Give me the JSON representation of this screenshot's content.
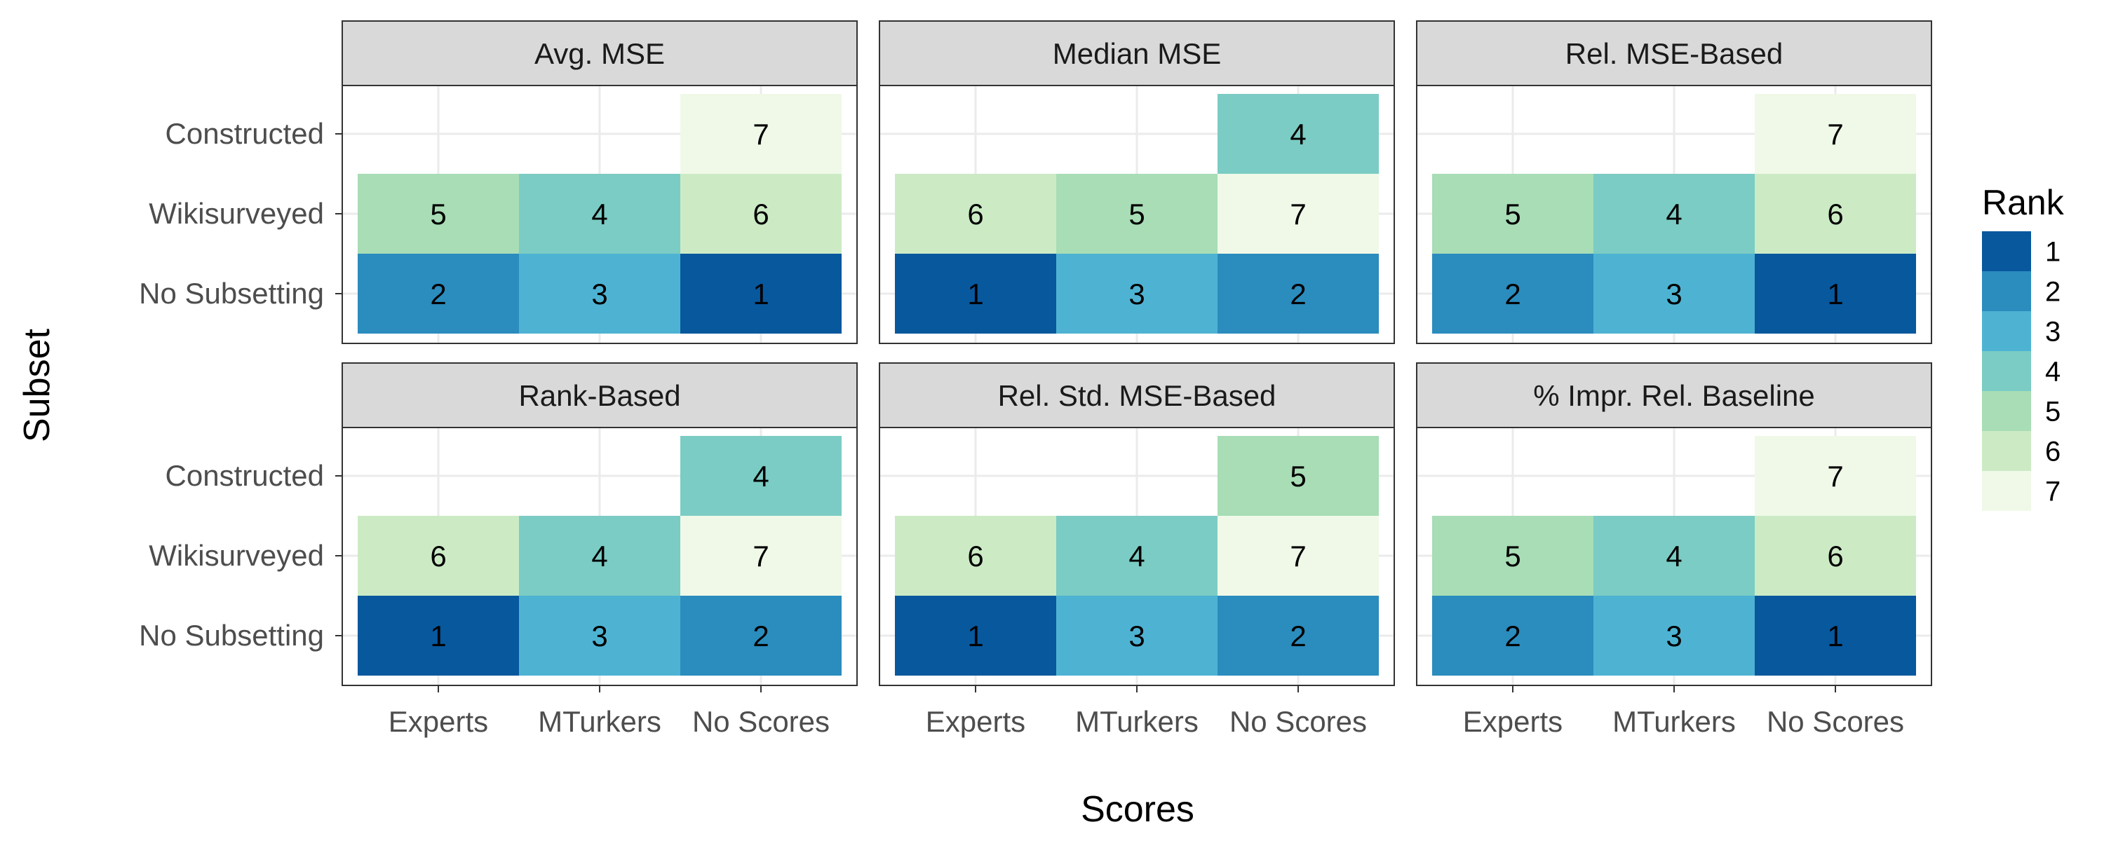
{
  "chart_data": {
    "type": "heatmap",
    "xlabel": "Scores",
    "ylabel": "Subset",
    "x_categories": [
      "Experts",
      "MTurkers",
      "No Scores"
    ],
    "y_categories": [
      "Constructed",
      "Wikisurveyed",
      "No Subsetting"
    ],
    "grid": true,
    "legend": {
      "title": "Rank",
      "placement": "right",
      "levels": [
        1,
        2,
        3,
        4,
        5,
        6,
        7
      ],
      "colors": [
        "#08589e",
        "#2b8cbe",
        "#4eb3d3",
        "#7bccc4",
        "#a8ddb5",
        "#ccebc5",
        "#f0f9e8"
      ]
    },
    "facets": [
      {
        "title": "Avg. MSE",
        "ranks": {
          "Constructed": [
            null,
            null,
            7
          ],
          "Wikisurveyed": [
            5,
            4,
            6
          ],
          "No Subsetting": [
            2,
            3,
            1
          ]
        }
      },
      {
        "title": "Median MSE",
        "ranks": {
          "Constructed": [
            null,
            null,
            4
          ],
          "Wikisurveyed": [
            6,
            5,
            7
          ],
          "No Subsetting": [
            1,
            3,
            2
          ]
        }
      },
      {
        "title": "Rel. MSE-Based",
        "ranks": {
          "Constructed": [
            null,
            null,
            7
          ],
          "Wikisurveyed": [
            5,
            4,
            6
          ],
          "No Subsetting": [
            2,
            3,
            1
          ]
        }
      },
      {
        "title": "Rank-Based",
        "ranks": {
          "Constructed": [
            null,
            null,
            4
          ],
          "Wikisurveyed": [
            6,
            4,
            7
          ],
          "No Subsetting": [
            1,
            3,
            2
          ]
        }
      },
      {
        "title": "Rel. Std. MSE-Based",
        "ranks": {
          "Constructed": [
            null,
            null,
            5
          ],
          "Wikisurveyed": [
            6,
            4,
            7
          ],
          "No Subsetting": [
            1,
            3,
            2
          ]
        }
      },
      {
        "title": "% Impr. Rel. Baseline",
        "ranks": {
          "Constructed": [
            null,
            null,
            7
          ],
          "Wikisurveyed": [
            5,
            4,
            6
          ],
          "No Subsetting": [
            2,
            3,
            1
          ]
        }
      }
    ]
  }
}
